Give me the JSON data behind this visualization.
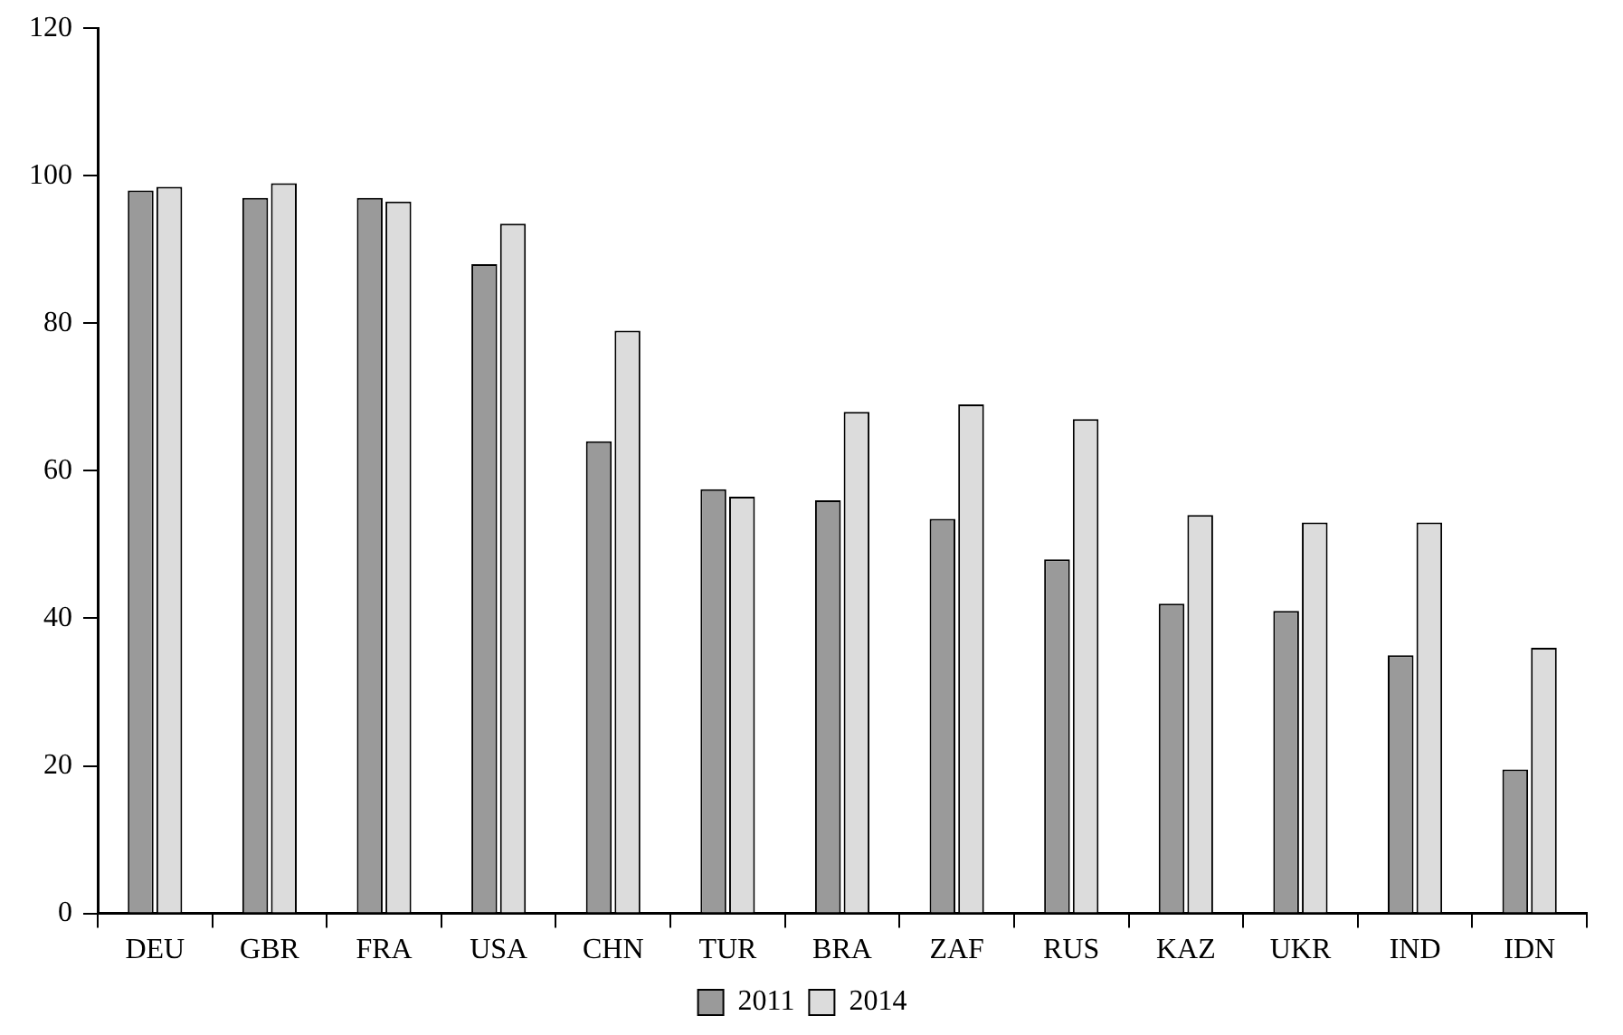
{
  "chart_data": {
    "type": "bar",
    "categories": [
      "DEU",
      "GBR",
      "FRA",
      "USA",
      "CHN",
      "TUR",
      "BRA",
      "ZAF",
      "RUS",
      "KAZ",
      "UKR",
      "IND",
      "IDN"
    ],
    "series": [
      {
        "name": "2011",
        "color": "#9a9a9a",
        "values": [
          98,
          97,
          97,
          88,
          64,
          57.5,
          56,
          53.5,
          48,
          42,
          41,
          35,
          19.5
        ]
      },
      {
        "name": "2014",
        "color": "#dcdcdc",
        "values": [
          98.5,
          99,
          96.5,
          93.5,
          79,
          56.5,
          68,
          69,
          67,
          54,
          53,
          53,
          36
        ]
      }
    ],
    "ylim": [
      0,
      120
    ],
    "yticks": [
      0,
      20,
      40,
      60,
      80,
      100,
      120
    ],
    "grid": false,
    "legend": "bottom"
  }
}
